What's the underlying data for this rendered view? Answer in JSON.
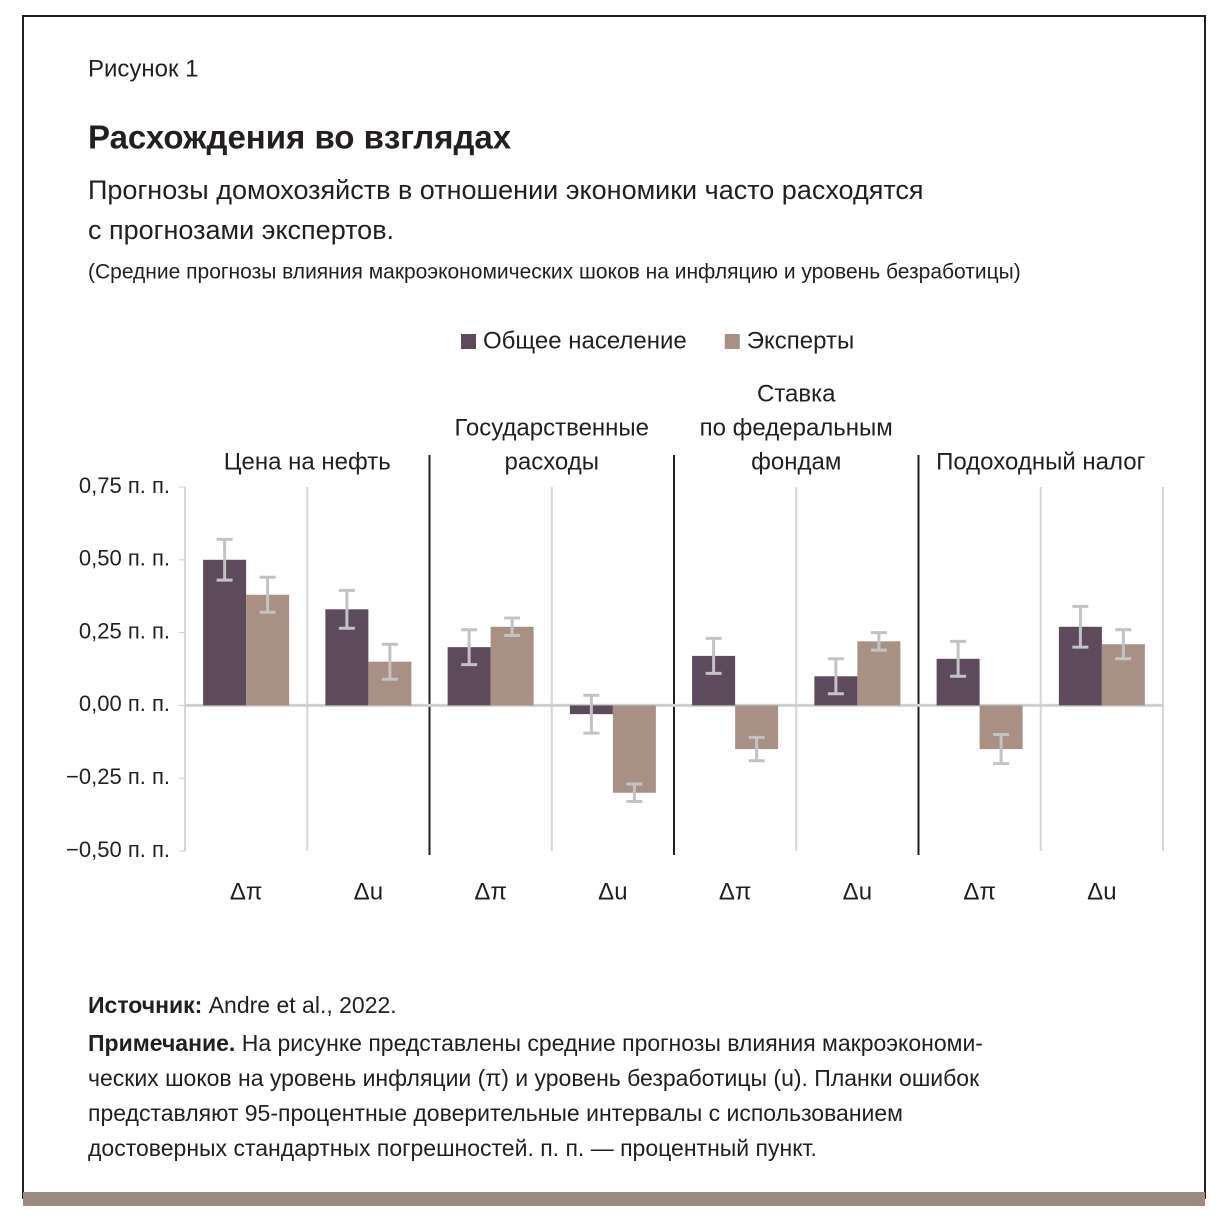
{
  "header": {
    "figure": "Рисунок 1",
    "title": "Расхождения во взглядах",
    "subtitle": [
      "Прогнозы домохозяйств в отношении экономики часто расходятся",
      "с прогнозами экспертов."
    ],
    "note": "(Средние прогнозы влияния макроэкономических шоков на инфляцию и уровень безработицы)"
  },
  "chart_data": {
    "type": "bar",
    "groups": [
      [
        "Цена на нефть"
      ],
      [
        "Государственные",
        "расходы"
      ],
      [
        "Ставка",
        "по федеральным",
        "фондам"
      ],
      [
        "Подоходный налог"
      ]
    ],
    "categories": [
      "Δπ",
      "Δu",
      "Δπ",
      "Δu",
      "Δπ",
      "Δu",
      "Δπ",
      "Δu"
    ],
    "series": [
      {
        "name": "Общее население",
        "color": "#5d4a5d",
        "values": [
          0.5,
          0.33,
          0.2,
          -0.03,
          0.17,
          0.1,
          0.16,
          0.27
        ],
        "errors": [
          0.07,
          0.065,
          0.06,
          0.065,
          0.06,
          0.06,
          0.06,
          0.07
        ]
      },
      {
        "name": "Эксперты",
        "color": "#a89085",
        "values": [
          0.38,
          0.15,
          0.27,
          -0.3,
          -0.15,
          0.22,
          -0.15,
          0.21
        ],
        "errors": [
          0.06,
          0.06,
          0.03,
          0.03,
          0.04,
          0.03,
          0.05,
          0.05
        ]
      }
    ],
    "ylim": [
      -0.5,
      0.75
    ],
    "yticks": [
      {
        "value": -0.5,
        "label": "−0,50 п. п."
      },
      {
        "value": -0.25,
        "label": "−0,25 п. п."
      },
      {
        "value": 0,
        "label": "0,00 п. п."
      },
      {
        "value": 0.25,
        "label": "0,25 п. п."
      },
      {
        "value": 0.5,
        "label": "0,50 п. п."
      },
      {
        "value": 0.75,
        "label": "0,75 п. п."
      }
    ],
    "error_color": "#c3c3c3"
  },
  "footer": {
    "source": {
      "label": "Источник:",
      "text": "Andre et al., 2022."
    },
    "note": {
      "label": "Примечание.",
      "lines": [
        " На рисунке представлены средние прогнозы влияния макроэкономи-",
        "ческих шоков на уровень инфляции (π) и уровень безработицы (u). Планки ошибок",
        "представляют 95-процентные доверительные интервалы с использованием",
        "достоверных стандартных погрешностей. п. п. — процентный пункт."
      ]
    }
  }
}
